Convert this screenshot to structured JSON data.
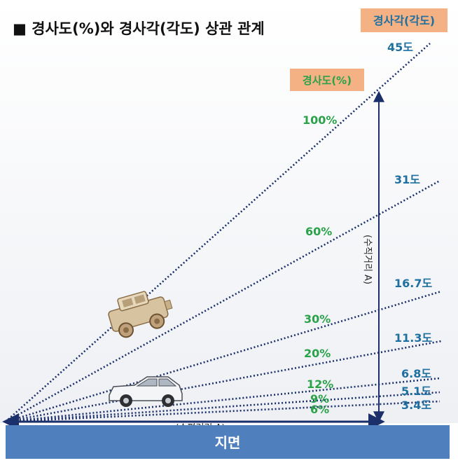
{
  "title": "■ 경사도(%)와 경사각(각도) 상관 관계",
  "legend_angle": "경사각(각도)",
  "legend_grade": "경사도(%)",
  "ground_label": "지면",
  "horizontal_label": "(수평거리 A)",
  "vertical_label": "(수직거리 A)",
  "colors": {
    "angle_text": "#1f6fa0",
    "grade_text": "#2aa24a",
    "line": "#1b2f6b",
    "ground": "#4f7fbd",
    "legend_box": "#f4b183"
  },
  "lines": [
    {
      "angle": "45도",
      "grade": "100%",
      "angle_deg": 45,
      "grade_pct": 100
    },
    {
      "angle": "31도",
      "grade": "60%",
      "angle_deg": 31,
      "grade_pct": 60
    },
    {
      "angle": "16.7도",
      "grade": "30%",
      "angle_deg": 16.7,
      "grade_pct": 30
    },
    {
      "angle": "11.3도",
      "grade": "20%",
      "angle_deg": 11.3,
      "grade_pct": 20
    },
    {
      "angle": "6.8도",
      "grade": "12%",
      "angle_deg": 6.8,
      "grade_pct": 12
    },
    {
      "angle": "5.1도",
      "grade": "9%",
      "angle_deg": 5.1,
      "grade_pct": 9
    },
    {
      "angle": "3.4도",
      "grade": "6%",
      "angle_deg": 3.4,
      "grade_pct": 6
    }
  ],
  "icons": {
    "jeep": "jeep-icon",
    "car": "sedan-car-icon"
  }
}
